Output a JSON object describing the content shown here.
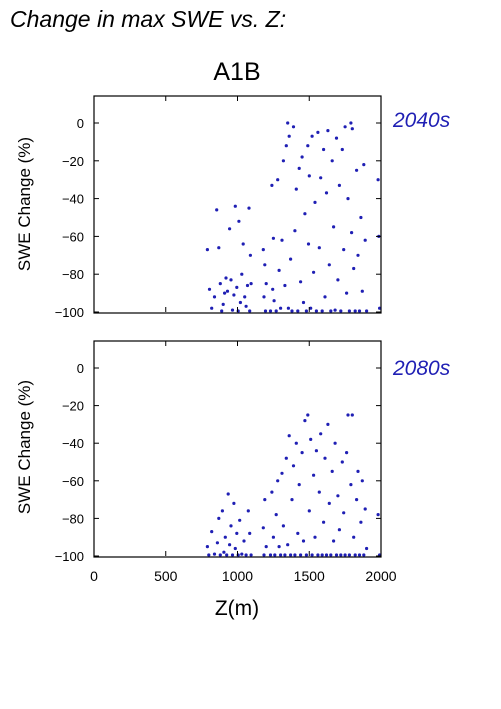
{
  "figure_title": "Change in max SWE vs. Z:",
  "scenario_label": "A1B",
  "marker_color": "#1f1fb4",
  "chart_data": [
    {
      "type": "scatter",
      "panel_label": "2040s",
      "xlabel": "Z(m)",
      "ylabel": "SWE Change (%)",
      "xlim": [
        0,
        2000
      ],
      "ylim": [
        -100,
        15
      ],
      "xticks": [
        0,
        500,
        1000,
        1500,
        2000
      ],
      "yticks": [
        0,
        -20,
        -40,
        -60,
        -80,
        -100
      ],
      "x_tick_labels_shown": false,
      "points": [
        [
          790,
          -67
        ],
        [
          805,
          -88
        ],
        [
          820,
          -98
        ],
        [
          840,
          -92
        ],
        [
          855,
          -46
        ],
        [
          870,
          -66
        ],
        [
          880,
          -85
        ],
        [
          890,
          -100
        ],
        [
          900,
          -96
        ],
        [
          910,
          -90
        ],
        [
          920,
          -82
        ],
        [
          930,
          -89
        ],
        [
          945,
          -56
        ],
        [
          955,
          -83
        ],
        [
          965,
          -99
        ],
        [
          975,
          -91
        ],
        [
          985,
          -44
        ],
        [
          995,
          -87
        ],
        [
          1005,
          -100
        ],
        [
          1010,
          -52
        ],
        [
          1020,
          -95
        ],
        [
          1030,
          -80
        ],
        [
          1040,
          -64
        ],
        [
          1050,
          -92
        ],
        [
          1060,
          -97
        ],
        [
          1070,
          -86
        ],
        [
          1080,
          -45
        ],
        [
          1085,
          -100
        ],
        [
          1090,
          -70
        ],
        [
          1095,
          -85
        ],
        [
          1180,
          -67
        ],
        [
          1185,
          -92
        ],
        [
          1190,
          -75
        ],
        [
          1195,
          -100
        ],
        [
          1200,
          -85
        ],
        [
          1230,
          -100
        ],
        [
          1240,
          -33
        ],
        [
          1245,
          -88
        ],
        [
          1250,
          -61
        ],
        [
          1255,
          -94
        ],
        [
          1270,
          -100
        ],
        [
          1280,
          -30
        ],
        [
          1290,
          -78
        ],
        [
          1300,
          -98
        ],
        [
          1310,
          -62
        ],
        [
          1320,
          -20
        ],
        [
          1330,
          -86
        ],
        [
          1340,
          -12
        ],
        [
          1350,
          0
        ],
        [
          1355,
          -98
        ],
        [
          1360,
          -7
        ],
        [
          1370,
          -72
        ],
        [
          1380,
          -100
        ],
        [
          1390,
          -2
        ],
        [
          1400,
          -57
        ],
        [
          1410,
          -35
        ],
        [
          1420,
          -100
        ],
        [
          1430,
          -24
        ],
        [
          1440,
          -84
        ],
        [
          1450,
          -18
        ],
        [
          1460,
          -95
        ],
        [
          1470,
          -48
        ],
        [
          1480,
          -100
        ],
        [
          1490,
          -12
        ],
        [
          1495,
          -64
        ],
        [
          1500,
          -28
        ],
        [
          1510,
          -98
        ],
        [
          1520,
          -7
        ],
        [
          1530,
          -79
        ],
        [
          1540,
          -42
        ],
        [
          1550,
          -100
        ],
        [
          1560,
          -5
        ],
        [
          1570,
          -66
        ],
        [
          1580,
          -29
        ],
        [
          1590,
          -100
        ],
        [
          1600,
          -14
        ],
        [
          1610,
          -92
        ],
        [
          1620,
          -37
        ],
        [
          1630,
          -4
        ],
        [
          1640,
          -75
        ],
        [
          1650,
          -100
        ],
        [
          1660,
          -20
        ],
        [
          1670,
          -55
        ],
        [
          1680,
          -99
        ],
        [
          1690,
          -8
        ],
        [
          1700,
          -83
        ],
        [
          1710,
          -33
        ],
        [
          1720,
          -100
        ],
        [
          1730,
          -14
        ],
        [
          1740,
          -67
        ],
        [
          1750,
          -2
        ],
        [
          1760,
          -90
        ],
        [
          1770,
          -40
        ],
        [
          1780,
          -100
        ],
        [
          1790,
          0
        ],
        [
          1795,
          -58
        ],
        [
          1800,
          -3
        ],
        [
          1810,
          -77
        ],
        [
          1820,
          -100
        ],
        [
          1830,
          -25
        ],
        [
          1840,
          -70
        ],
        [
          1850,
          -100
        ],
        [
          1860,
          -50
        ],
        [
          1870,
          -89
        ],
        [
          1880,
          -22
        ],
        [
          1890,
          -62
        ],
        [
          1900,
          -100
        ],
        [
          1980,
          -30
        ],
        [
          1985,
          -60
        ],
        [
          1990,
          -98
        ]
      ]
    },
    {
      "type": "scatter",
      "panel_label": "2080s",
      "xlabel": "Z(m)",
      "ylabel": "SWE Change (%)",
      "xlim": [
        0,
        2000
      ],
      "ylim": [
        -100,
        15
      ],
      "xticks": [
        0,
        500,
        1000,
        1500,
        2000
      ],
      "yticks": [
        0,
        -20,
        -40,
        -60,
        -80,
        -100
      ],
      "x_tick_labels_shown": true,
      "points": [
        [
          790,
          -95
        ],
        [
          800,
          -100
        ],
        [
          820,
          -87
        ],
        [
          840,
          -99
        ],
        [
          860,
          -93
        ],
        [
          870,
          -80
        ],
        [
          880,
          -100
        ],
        [
          895,
          -76
        ],
        [
          905,
          -98
        ],
        [
          915,
          -90
        ],
        [
          925,
          -100
        ],
        [
          935,
          -67
        ],
        [
          945,
          -94
        ],
        [
          955,
          -84
        ],
        [
          965,
          -100
        ],
        [
          975,
          -72
        ],
        [
          985,
          -96
        ],
        [
          995,
          -88
        ],
        [
          1005,
          -100
        ],
        [
          1015,
          -81
        ],
        [
          1030,
          -99
        ],
        [
          1045,
          -92
        ],
        [
          1060,
          -100
        ],
        [
          1075,
          -76
        ],
        [
          1085,
          -88
        ],
        [
          1095,
          -100
        ],
        [
          1180,
          -85
        ],
        [
          1185,
          -100
        ],
        [
          1190,
          -70
        ],
        [
          1200,
          -95
        ],
        [
          1230,
          -100
        ],
        [
          1240,
          -66
        ],
        [
          1250,
          -90
        ],
        [
          1260,
          -100
        ],
        [
          1270,
          -78
        ],
        [
          1280,
          -60
        ],
        [
          1290,
          -95
        ],
        [
          1300,
          -100
        ],
        [
          1310,
          -56
        ],
        [
          1320,
          -84
        ],
        [
          1330,
          -100
        ],
        [
          1340,
          -48
        ],
        [
          1350,
          -94
        ],
        [
          1360,
          -36
        ],
        [
          1370,
          -100
        ],
        [
          1380,
          -70
        ],
        [
          1390,
          -52
        ],
        [
          1400,
          -100
        ],
        [
          1410,
          -40
        ],
        [
          1420,
          -88
        ],
        [
          1430,
          -62
        ],
        [
          1440,
          -100
        ],
        [
          1450,
          -45
        ],
        [
          1460,
          -92
        ],
        [
          1470,
          -28
        ],
        [
          1480,
          -100
        ],
        [
          1490,
          -25
        ],
        [
          1500,
          -76
        ],
        [
          1510,
          -38
        ],
        [
          1520,
          -100
        ],
        [
          1530,
          -57
        ],
        [
          1540,
          -90
        ],
        [
          1550,
          -44
        ],
        [
          1560,
          -100
        ],
        [
          1570,
          -66
        ],
        [
          1580,
          -35
        ],
        [
          1590,
          -100
        ],
        [
          1600,
          -82
        ],
        [
          1610,
          -48
        ],
        [
          1620,
          -100
        ],
        [
          1630,
          -30
        ],
        [
          1640,
          -72
        ],
        [
          1650,
          -100
        ],
        [
          1660,
          -55
        ],
        [
          1670,
          -92
        ],
        [
          1680,
          -40
        ],
        [
          1690,
          -100
        ],
        [
          1700,
          -68
        ],
        [
          1710,
          -86
        ],
        [
          1720,
          -100
        ],
        [
          1730,
          -50
        ],
        [
          1740,
          -77
        ],
        [
          1750,
          -100
        ],
        [
          1760,
          -45
        ],
        [
          1770,
          -25
        ],
        [
          1780,
          -100
        ],
        [
          1790,
          -62
        ],
        [
          1800,
          -25
        ],
        [
          1810,
          -90
        ],
        [
          1820,
          -100
        ],
        [
          1830,
          -70
        ],
        [
          1840,
          -55
        ],
        [
          1850,
          -100
        ],
        [
          1860,
          -82
        ],
        [
          1870,
          -60
        ],
        [
          1880,
          -100
        ],
        [
          1890,
          -75
        ],
        [
          1900,
          -96
        ],
        [
          1980,
          -78
        ],
        [
          1990,
          -100
        ]
      ]
    }
  ]
}
